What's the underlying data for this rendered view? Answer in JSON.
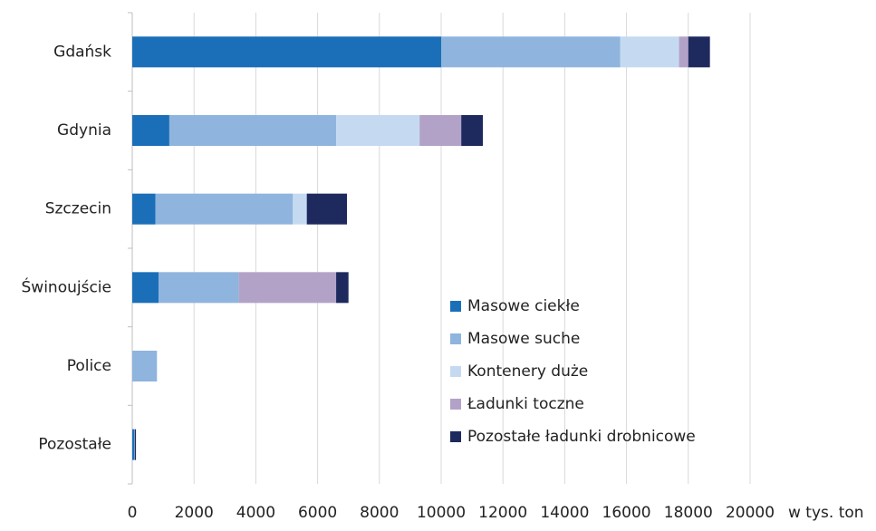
{
  "chart_data": {
    "type": "stacked-bar-horizontal",
    "x_label": "w tys. ton",
    "categories": [
      "Gdańsk",
      "Gdynia",
      "Szczecin",
      "Świnoujście",
      "Police",
      "Pozostałe"
    ],
    "series": [
      {
        "name": "Masowe ciekłe",
        "color": "#1a6fb8",
        "values": [
          10000,
          1200,
          750,
          850,
          0,
          60
        ]
      },
      {
        "name": "Masowe suche",
        "color": "#8fb4de",
        "values": [
          5800,
          5400,
          4450,
          2600,
          800,
          20
        ]
      },
      {
        "name": "Kontenery duże",
        "color": "#c5daf1",
        "values": [
          1900,
          2700,
          450,
          0,
          0,
          0
        ]
      },
      {
        "name": "Ładunki toczne",
        "color": "#b3a2c8",
        "values": [
          300,
          1350,
          0,
          3150,
          0,
          0
        ]
      },
      {
        "name": "Pozostałe ładunki drobnicowe",
        "color": "#1e2a5e",
        "values": [
          700,
          700,
          1300,
          400,
          0,
          40
        ]
      }
    ],
    "xlim": [
      0,
      20000
    ],
    "xticks": [
      0,
      2000,
      4000,
      6000,
      8000,
      10000,
      12000,
      14000,
      16000,
      18000,
      20000
    ],
    "grid": true
  }
}
